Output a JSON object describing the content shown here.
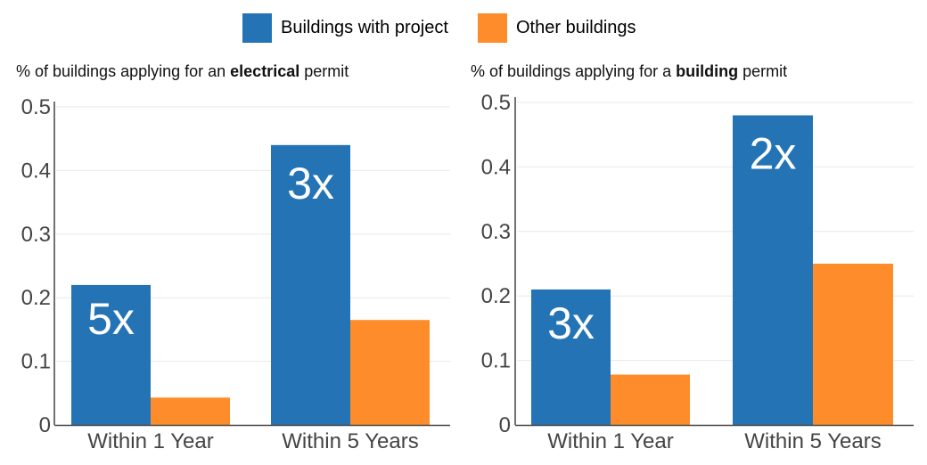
{
  "legend": {
    "items": [
      {
        "label": "Buildings with project",
        "color": "#2474b5"
      },
      {
        "label": "Other buildings",
        "color": "#ff8c2a"
      }
    ]
  },
  "colors": {
    "series_1": "#2474b5",
    "series_2": "#ff8c2a",
    "gridline": "#e8e8e8",
    "axis": "#444444",
    "tick_text": "#444444",
    "annotation_text": "#ffffff"
  },
  "chart_data": [
    {
      "type": "bar",
      "title_parts": [
        {
          "text": "% of buildings applying for an ",
          "bold": false
        },
        {
          "text": "electrical",
          "bold": true
        },
        {
          "text": " permit",
          "bold": false
        }
      ],
      "categories": [
        "Within 1 Year",
        "Within 5 Years"
      ],
      "series": [
        {
          "name": "Buildings with project",
          "values": [
            0.22,
            0.44
          ]
        },
        {
          "name": "Other buildings",
          "values": [
            0.043,
            0.165
          ]
        }
      ],
      "annotations": [
        "5x",
        "3x"
      ],
      "ylim": [
        0,
        0.5
      ],
      "yticks": [
        0,
        0.1,
        0.2,
        0.3,
        0.4,
        0.5
      ],
      "ytick_labels": [
        "0",
        "0.1",
        "0.2",
        "0.3",
        "0.4",
        "0.5"
      ],
      "grid": true,
      "legend_position": "top-center"
    },
    {
      "type": "bar",
      "title_parts": [
        {
          "text": "% of buildings applying for a ",
          "bold": false
        },
        {
          "text": "building",
          "bold": true
        },
        {
          "text": " permit",
          "bold": false
        }
      ],
      "categories": [
        "Within 1 Year",
        "Within 5 Years"
      ],
      "series": [
        {
          "name": "Buildings with project",
          "values": [
            0.21,
            0.48
          ]
        },
        {
          "name": "Other buildings",
          "values": [
            0.078,
            0.25
          ]
        }
      ],
      "annotations": [
        "3x",
        "2x"
      ],
      "ylim": [
        0,
        0.5
      ],
      "yticks": [
        0,
        0.1,
        0.2,
        0.3,
        0.4,
        0.5
      ],
      "ytick_labels": [
        "0",
        "0.1",
        "0.2",
        "0.3",
        "0.4",
        "0.5"
      ],
      "grid": true,
      "legend_position": "top-center"
    }
  ]
}
